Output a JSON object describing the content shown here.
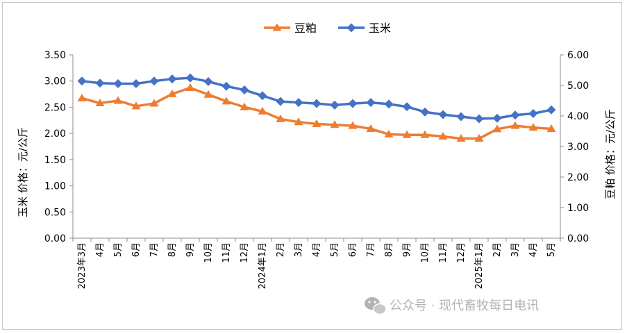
{
  "chart_data": {
    "type": "line",
    "title": "",
    "categories": [
      "2023年3月",
      "4月",
      "5月",
      "6月",
      "7月",
      "8月",
      "9月",
      "10月",
      "11月",
      "12月",
      "2024年1月",
      "2月",
      "3月",
      "4月",
      "5月",
      "6月",
      "7月",
      "8月",
      "9月",
      "10月",
      "11月",
      "12月",
      "2025年1月",
      "2月",
      "3月",
      "4月",
      "5月"
    ],
    "series": [
      {
        "name": "豆粕",
        "axis": "right",
        "color": "#ED7D31",
        "marker": "triangle",
        "values": [
          4.58,
          4.42,
          4.5,
          4.32,
          4.41,
          4.72,
          4.92,
          4.7,
          4.48,
          4.29,
          4.15,
          3.9,
          3.8,
          3.74,
          3.71,
          3.68,
          3.58,
          3.4,
          3.38,
          3.38,
          3.33,
          3.26,
          3.26,
          3.57,
          3.68,
          3.62,
          3.58
        ]
      },
      {
        "name": "玉米",
        "axis": "left",
        "color": "#4472C4",
        "marker": "diamond",
        "values": [
          3.0,
          2.96,
          2.95,
          2.95,
          3.0,
          3.04,
          3.06,
          2.99,
          2.9,
          2.83,
          2.72,
          2.61,
          2.59,
          2.57,
          2.54,
          2.57,
          2.59,
          2.56,
          2.51,
          2.41,
          2.36,
          2.32,
          2.28,
          2.29,
          2.35,
          2.38,
          2.45
        ]
      }
    ],
    "left_axis": {
      "title": "玉米  价格：元/公斤",
      "ylim": [
        0,
        3.5
      ],
      "ticks": [
        "0.00",
        "0.50",
        "1.00",
        "1.50",
        "2.00",
        "2.50",
        "3.00",
        "3.50"
      ]
    },
    "right_axis": {
      "title": "豆粕  价格：元/公斤",
      "ylim": [
        0,
        6
      ],
      "ticks": [
        "0.00",
        "1.00",
        "2.00",
        "3.00",
        "4.00",
        "5.00",
        "6.00"
      ]
    },
    "legend": {
      "position": "top-center"
    },
    "grid": false
  },
  "watermark": {
    "text": "公众号 · 现代畜牧每日电讯",
    "icon": "wechat-icon"
  }
}
